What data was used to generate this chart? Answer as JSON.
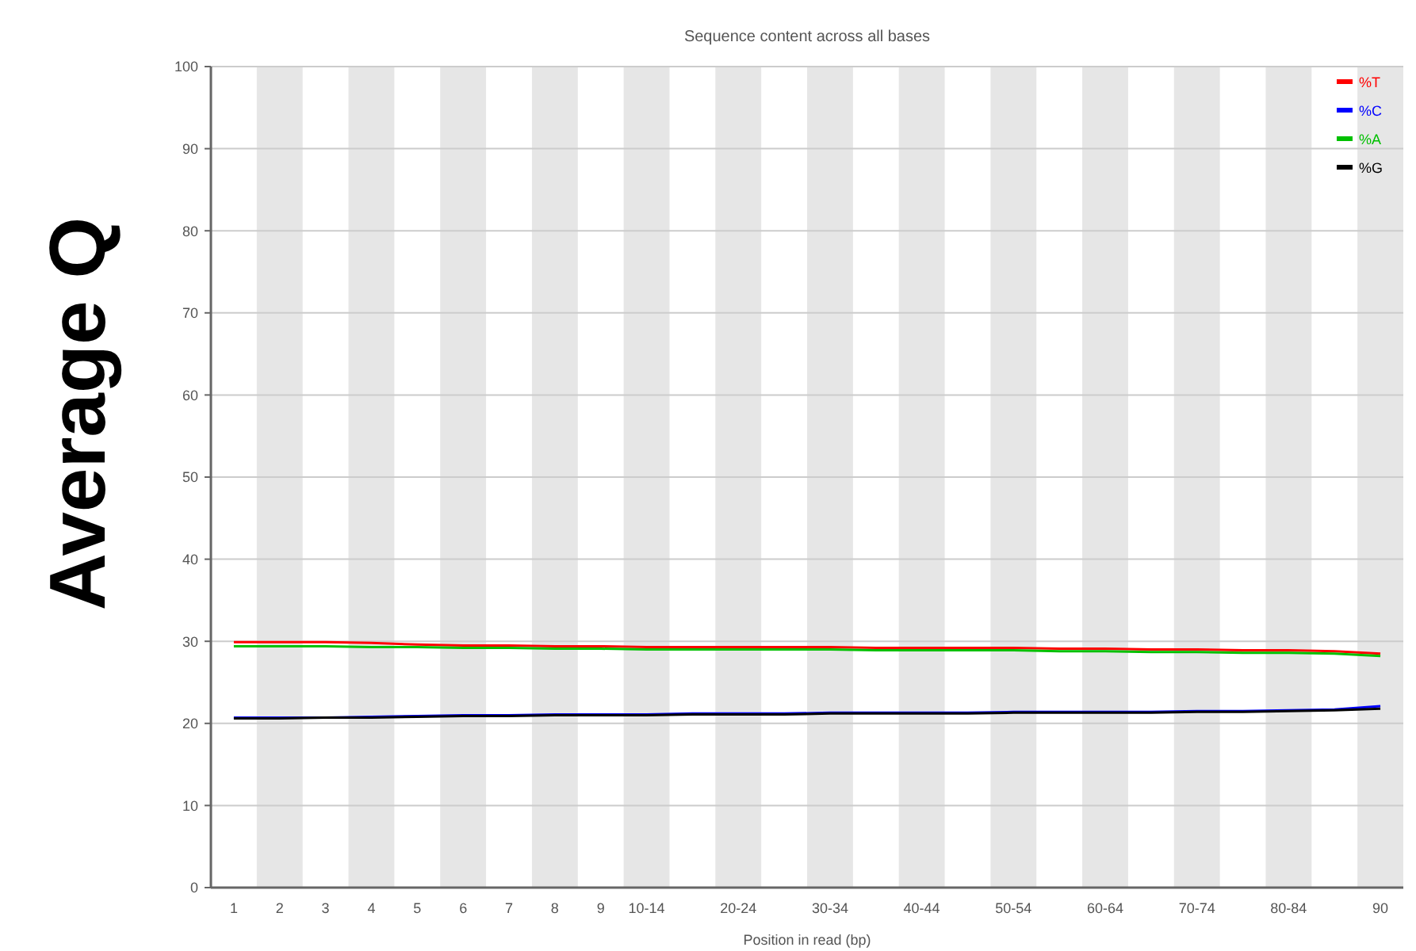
{
  "chart_data": {
    "type": "line",
    "title": "Sequence content across all bases",
    "xlabel": "Position in read (bp)",
    "ylabel": "Average Q",
    "categories": [
      "1",
      "2",
      "3",
      "4",
      "5",
      "6",
      "7",
      "8",
      "9",
      "10-14",
      null,
      "20-24",
      null,
      "30-34",
      null,
      "40-44",
      null,
      "50-54",
      null,
      "60-64",
      null,
      "70-74",
      null,
      "80-84",
      null,
      "90"
    ],
    "series": [
      {
        "name": "%T",
        "color": "#ff0000",
        "values": [
          29.9,
          29.9,
          29.9,
          29.8,
          29.6,
          29.5,
          29.5,
          29.4,
          29.4,
          29.3,
          29.3,
          29.3,
          29.3,
          29.3,
          29.2,
          29.2,
          29.2,
          29.2,
          29.1,
          29.1,
          29.0,
          29.0,
          28.9,
          28.9,
          28.8,
          28.5
        ]
      },
      {
        "name": "%C",
        "color": "#0000ff",
        "values": [
          20.7,
          20.7,
          20.7,
          20.8,
          20.9,
          21.0,
          21.0,
          21.1,
          21.1,
          21.1,
          21.2,
          21.2,
          21.2,
          21.3,
          21.3,
          21.3,
          21.3,
          21.4,
          21.4,
          21.4,
          21.4,
          21.5,
          21.5,
          21.6,
          21.7,
          22.1
        ]
      },
      {
        "name": "%A",
        "color": "#00c000",
        "values": [
          29.4,
          29.4,
          29.4,
          29.3,
          29.3,
          29.2,
          29.2,
          29.1,
          29.1,
          29.0,
          29.0,
          29.0,
          29.0,
          29.0,
          28.9,
          28.9,
          28.9,
          28.9,
          28.8,
          28.8,
          28.7,
          28.7,
          28.6,
          28.6,
          28.5,
          28.2
        ]
      },
      {
        "name": "%G",
        "color": "#000000",
        "values": [
          20.6,
          20.6,
          20.7,
          20.7,
          20.8,
          20.9,
          20.9,
          21.0,
          21.0,
          21.0,
          21.1,
          21.1,
          21.1,
          21.2,
          21.2,
          21.2,
          21.2,
          21.3,
          21.3,
          21.3,
          21.3,
          21.4,
          21.4,
          21.5,
          21.6,
          21.8
        ]
      }
    ],
    "ylim": [
      0,
      100
    ],
    "yticks": [
      0,
      10,
      20,
      30,
      40,
      50,
      60,
      70,
      80,
      90,
      100
    ],
    "grid": "y",
    "legend": "top right",
    "line_style": "solid",
    "marker": "none"
  }
}
